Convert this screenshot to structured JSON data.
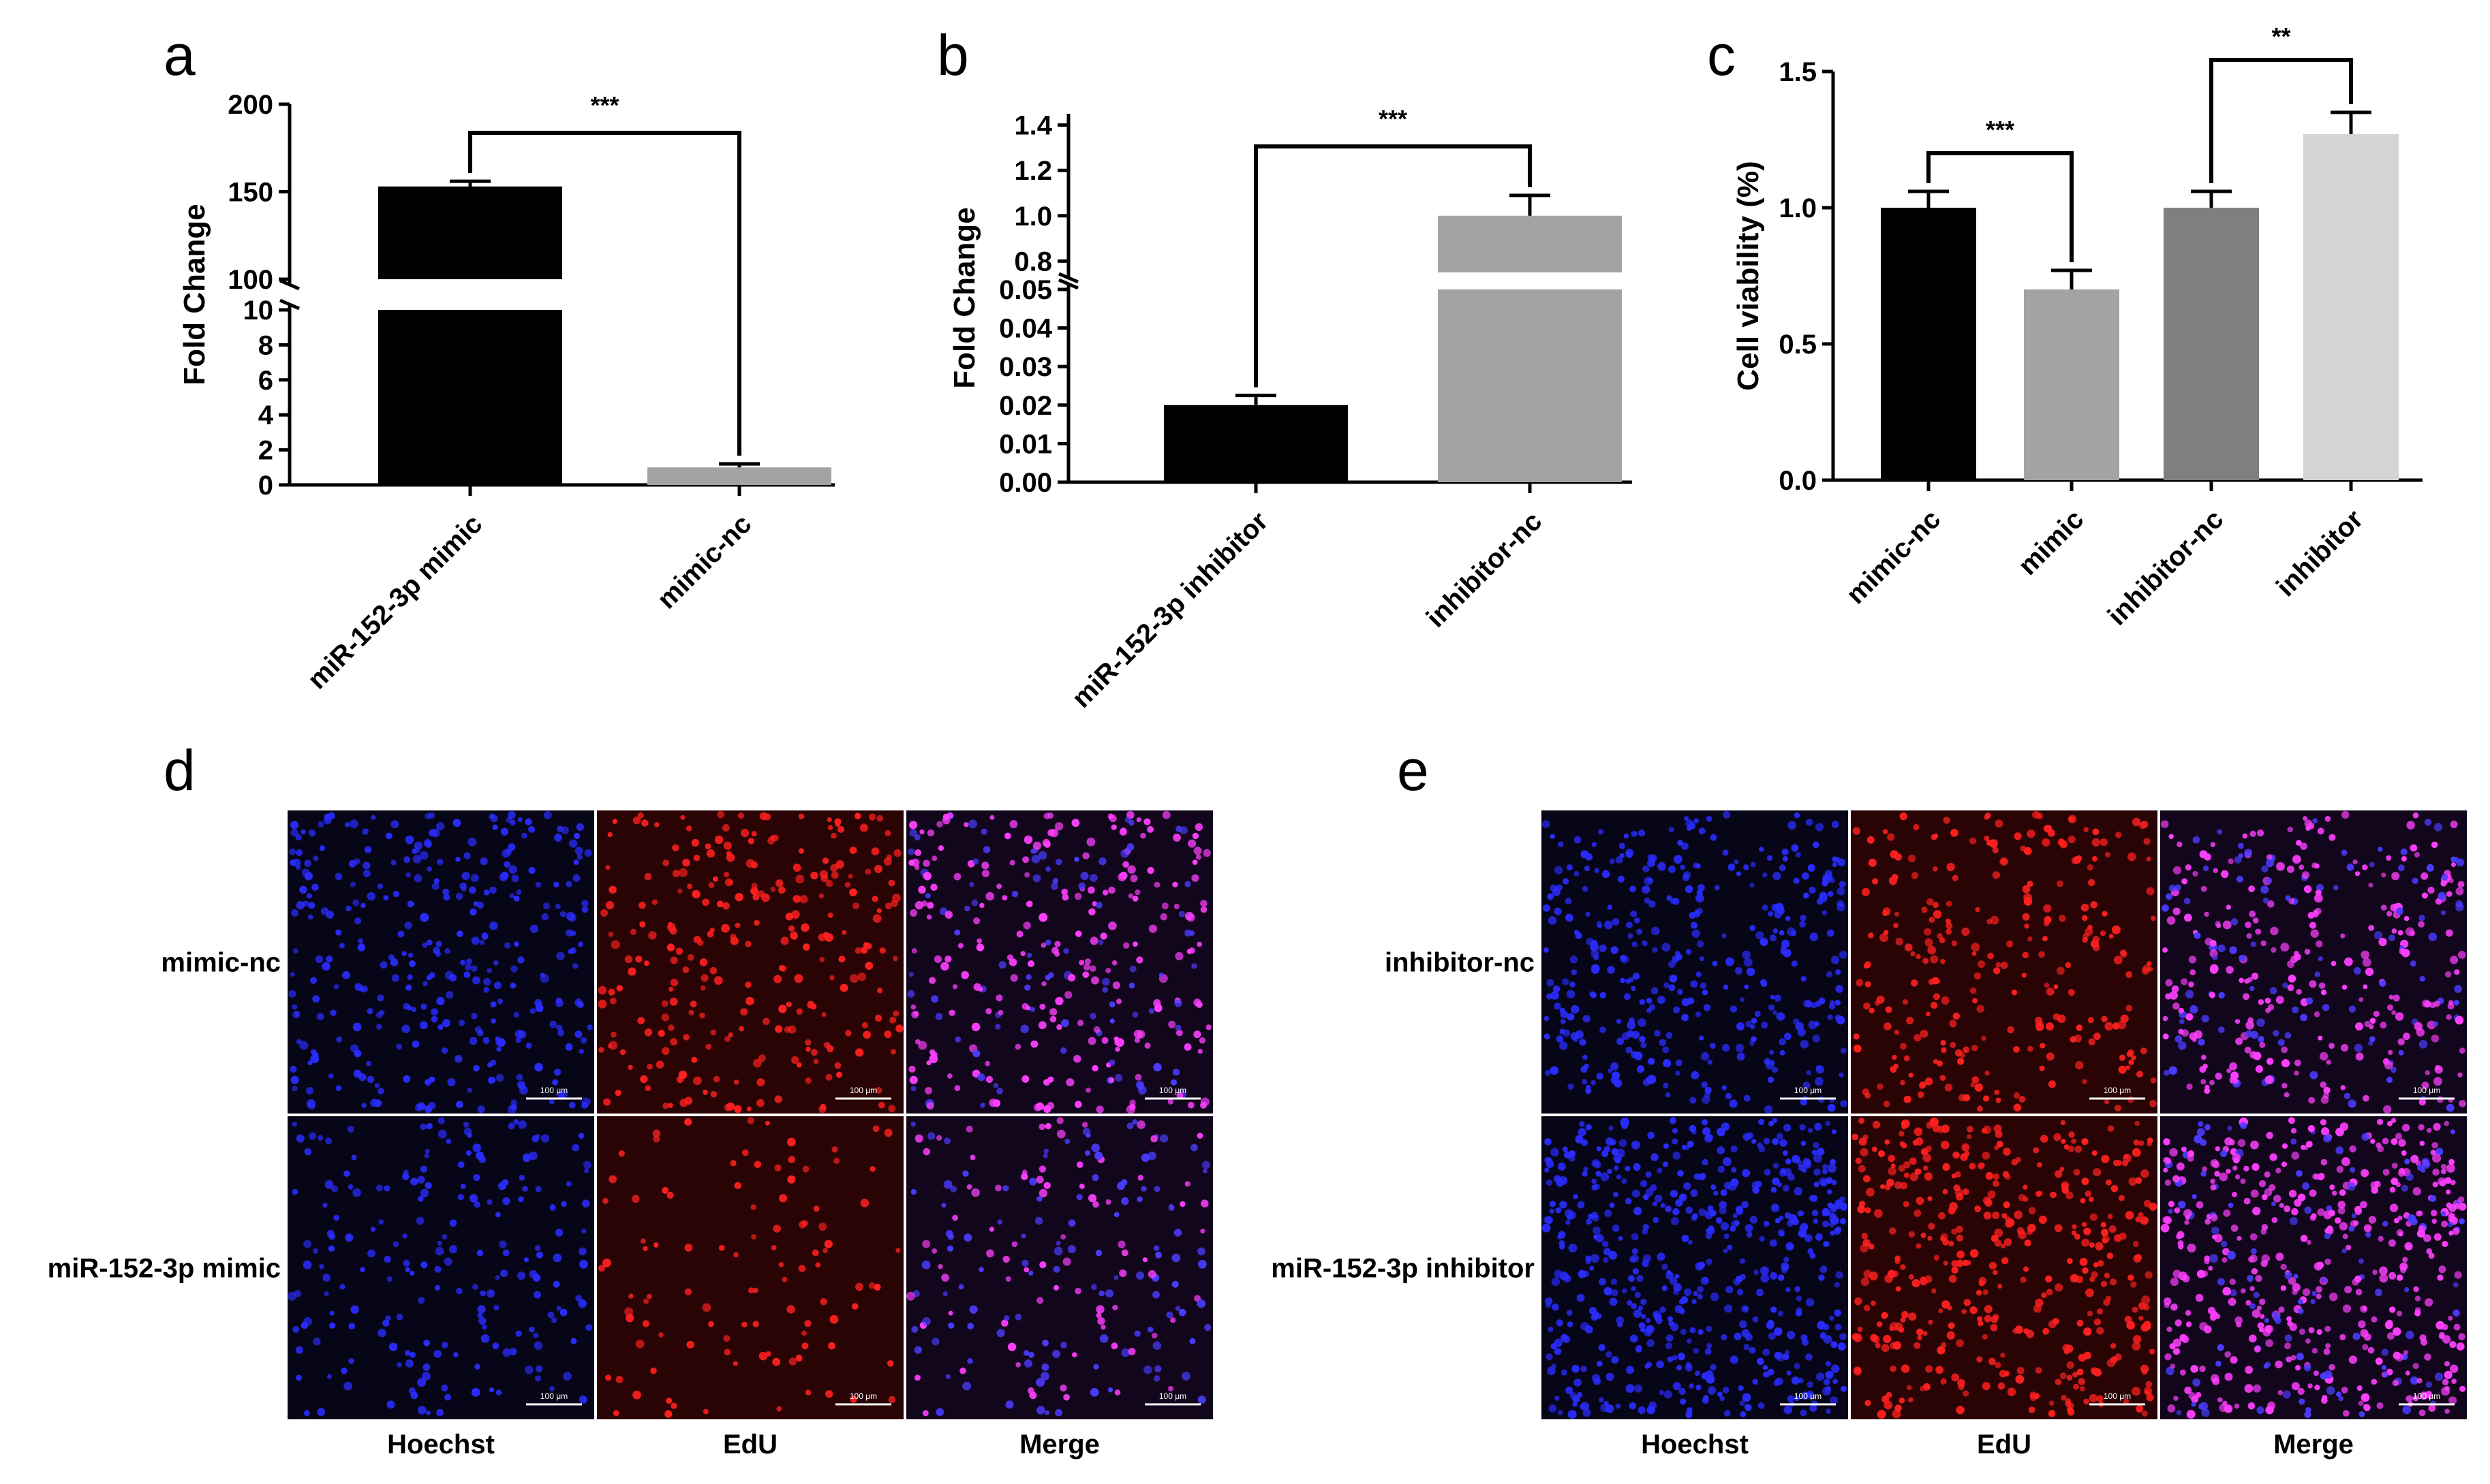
{
  "panels": {
    "a": "a",
    "b": "b",
    "c": "c",
    "d": "d",
    "e": "e"
  },
  "chart_data": [
    {
      "id": "a",
      "type": "bar",
      "title": "",
      "ylabel": "Fold Change",
      "xlabel": "",
      "categories": [
        "miR-152-3p mimic",
        "mimic-nc"
      ],
      "values": [
        153,
        1
      ],
      "errors": [
        3,
        0.2
      ],
      "colors": [
        "#000000",
        "#a3a3a6"
      ],
      "broken_axis": {
        "lower": {
          "range": [
            0,
            10
          ],
          "ticks": [
            0,
            2,
            4,
            6,
            8,
            10
          ],
          "labels": [
            "0",
            "2",
            "4",
            "6",
            "8",
            "10"
          ]
        },
        "upper": {
          "range": [
            100,
            200
          ],
          "ticks": [
            100,
            150,
            200
          ],
          "labels": [
            "100",
            "150",
            "200"
          ]
        }
      },
      "significance": [
        {
          "pair": [
            0,
            1
          ],
          "label": "***"
        }
      ]
    },
    {
      "id": "b",
      "type": "bar",
      "title": "",
      "ylabel": "Fold Change",
      "xlabel": "",
      "categories": [
        "miR-152-3p inhibitor",
        "inhibitor-nc"
      ],
      "values": [
        0.02,
        1.0
      ],
      "errors": [
        0.0025,
        0.09
      ],
      "colors": [
        "#000000",
        "#a3a3a6"
      ],
      "broken_axis": {
        "lower": {
          "range": [
            0,
            0.05
          ],
          "ticks": [
            0,
            0.01,
            0.02,
            0.03,
            0.04,
            0.05
          ],
          "labels": [
            "0.00",
            "0.01",
            "0.02",
            "0.03",
            "0.04",
            "0.05"
          ]
        },
        "upper": {
          "range": [
            0.75,
            1.45
          ],
          "ticks": [
            0.8,
            1.0,
            1.2,
            1.4
          ],
          "labels": [
            "0.8",
            "1.0",
            "1.2",
            "1.4"
          ]
        }
      },
      "significance": [
        {
          "pair": [
            0,
            1
          ],
          "label": "***"
        }
      ]
    },
    {
      "id": "c",
      "type": "bar",
      "title": "",
      "ylabel": "Cell viability (%)",
      "xlabel": "",
      "categories": [
        "mimic-nc",
        "mimic",
        "inhibitor-nc",
        "inhibitor"
      ],
      "values": [
        1.0,
        0.7,
        1.0,
        1.27
      ],
      "errors": [
        0.06,
        0.07,
        0.06,
        0.08
      ],
      "colors": [
        "#000000",
        "#a3a3a6",
        "#7f7f7f",
        "#d4d4d4"
      ],
      "ylim": [
        0,
        1.5
      ],
      "yticks": [
        0,
        0.5,
        1.0,
        1.5
      ],
      "ytick_labels": [
        "0.0",
        "0.5",
        "1.0",
        "1.5"
      ],
      "significance": [
        {
          "pair": [
            0,
            1
          ],
          "label": "***"
        },
        {
          "pair": [
            2,
            3
          ],
          "label": "**"
        }
      ]
    }
  ],
  "micrographs": {
    "d": {
      "rows": [
        "mimic-nc",
        "miR-152-3p mimic"
      ],
      "columns": [
        "Hoechst",
        "EdU",
        "Merge"
      ],
      "scale_bar": "100 μm"
    },
    "e": {
      "rows": [
        "inhibitor-nc",
        "miR-152-3p inhibitor"
      ],
      "columns": [
        "Hoechst",
        "EdU",
        "Merge"
      ],
      "scale_bar": "100 μm"
    }
  },
  "colors": {
    "hoechst_bg": "#070618",
    "hoechst_cell": "#2a2cff",
    "edu_bg": "#2a0404",
    "edu_cell": "#ff2020",
    "merge_bg": "#12061c",
    "merge_cell": "#ff40ff"
  }
}
